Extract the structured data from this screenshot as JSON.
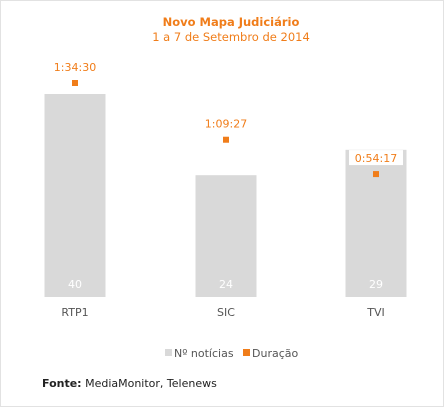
{
  "chart_data": {
    "type": "bar",
    "title": "Novo Mapa Judiciário",
    "subtitle": "1 a 7 de Setembro de 2014",
    "categories": [
      "RTP1",
      "SIC",
      "TVI"
    ],
    "series": [
      {
        "name": "Nº notícias",
        "type": "bar",
        "values": [
          40,
          24,
          29
        ],
        "color": "#d9d9d9"
      },
      {
        "name": "Duração",
        "type": "point",
        "values": [
          "1:34:30",
          "1:09:27",
          "0:54:17"
        ],
        "seconds": [
          5670,
          4167,
          3257
        ],
        "color": "#f07d1a"
      }
    ],
    "legend_position": "bottom",
    "grid": false
  },
  "source": {
    "label": "Fonte:",
    "text": " MediaMonitor, Telenews"
  }
}
